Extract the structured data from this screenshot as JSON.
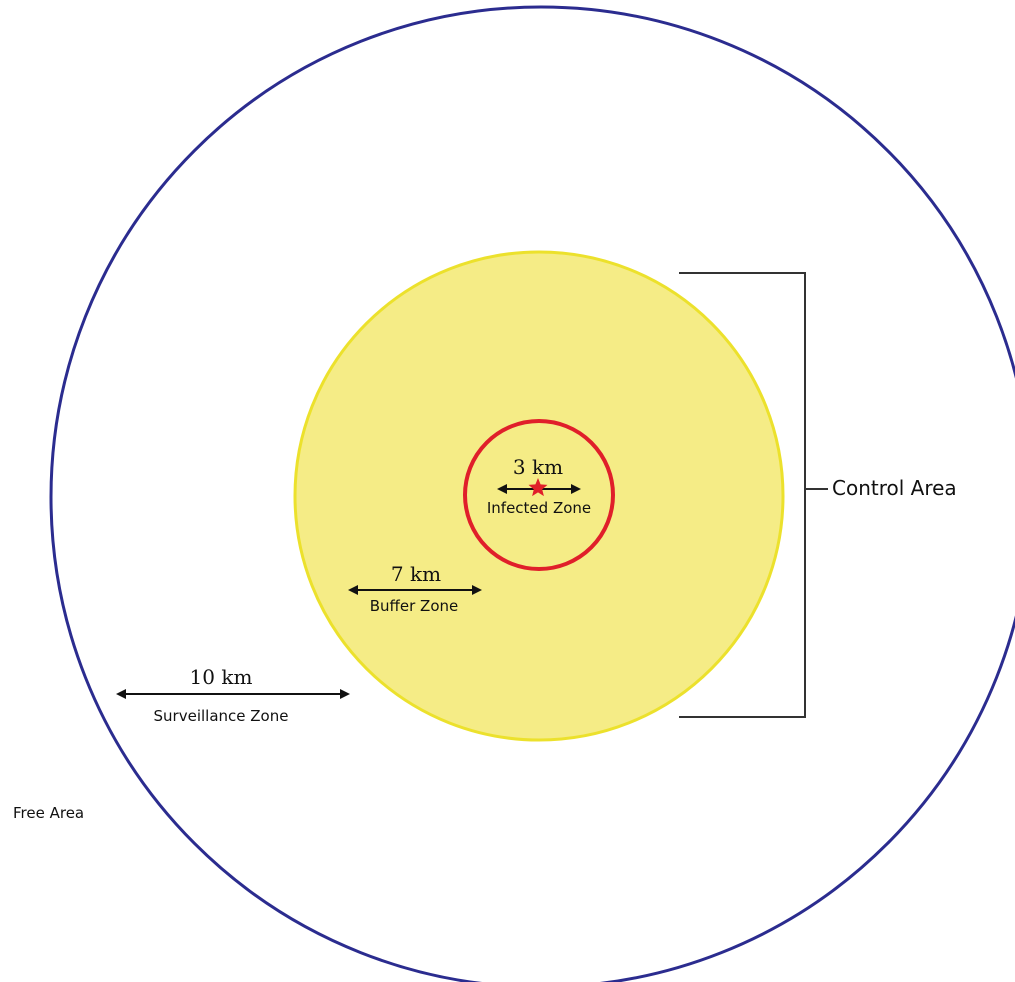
{
  "zones": {
    "infected": {
      "distance": "3 km",
      "name": "Infected Zone",
      "color": "#e01f2a"
    },
    "buffer": {
      "distance": "7 km",
      "name": "Buffer Zone",
      "color": "#f5ec86",
      "border_color": "#ece12c"
    },
    "surveillance": {
      "distance": "10 km",
      "name": "Surveillance Zone",
      "color": "#2b2c8f"
    }
  },
  "areas": {
    "control": "Control Area",
    "free": "Free Area"
  },
  "epicenter": {
    "icon": "star-icon",
    "color": "#e01f2a"
  }
}
